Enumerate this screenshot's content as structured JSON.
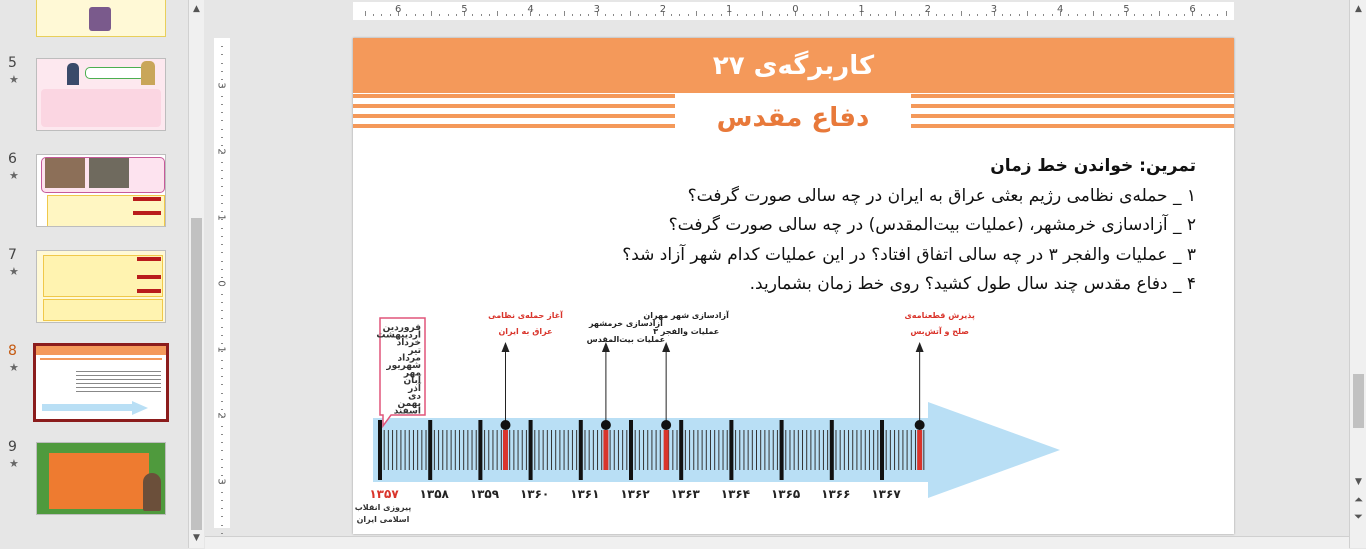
{
  "thumbnails": [
    {
      "number": "",
      "star": ""
    },
    {
      "number": "5",
      "star": "★"
    },
    {
      "number": "6",
      "star": "★"
    },
    {
      "number": "7",
      "star": "★"
    },
    {
      "number": "8",
      "star": "★"
    },
    {
      "number": "9",
      "star": "★"
    }
  ],
  "ruler": {
    "h_labels": [
      "6",
      "5",
      "4",
      "3",
      "2",
      "1",
      "0",
      "1",
      "2",
      "3",
      "4",
      "5",
      "6"
    ],
    "v_labels": [
      "3",
      "2",
      "1",
      "0",
      "1",
      "2",
      "3"
    ]
  },
  "slide": {
    "title": "کاربرگه‌ی ۲۷",
    "subtitle": "دفاع مقدس",
    "exercise_title": "تمرین: خواندن خط زمان",
    "questions": [
      "۱ _ حمله‌ی نظامی رژیم بعثی عراق به ایران در چه سالی صورت گرفت؟",
      "۲ _ آزادسازی خرمشهر، (عملیات بیت‌المقدس) در چه سالی صورت گرفت؟",
      "۳ _ عملیات والفجر ۳ در چه سالی اتفاق افتاد؟ در این عملیات کدام شهر آزاد شد؟",
      "۴ _ دفاع مقدس چند سال طول کشید؟ روی خط زمان بشمارید."
    ],
    "months": [
      "فروردین",
      "اردیبهشت",
      "خرداد",
      "تیر",
      "مرداد",
      "شهریور",
      "مهر",
      "آبان",
      "آذر",
      "دی",
      "بهمن",
      "اسفند"
    ],
    "years": [
      "۱۳۵۷",
      "۱۳۵۸",
      "۱۳۵۹",
      "۱۳۶۰",
      "۱۳۶۱",
      "۱۳۶۲",
      "۱۳۶۳",
      "۱۳۶۴",
      "۱۳۶۵",
      "۱۳۶۶",
      "۱۳۶۷"
    ],
    "year_caption": [
      "پیروزی انقلاب",
      "اسلامی ایران"
    ],
    "events": [
      {
        "lines": [
          "آغاز حمله‌ی نظامی",
          "عراق به ایران"
        ],
        "color": "#d9342b"
      },
      {
        "lines": [
          "آزادسازی خرمشهر",
          "عملیات بیت‌المقدس"
        ],
        "color": "#222222"
      },
      {
        "lines": [
          "آزادسازی شهر مهران",
          "عملیات والفجر ۳"
        ],
        "color": "#222222"
      },
      {
        "lines": [
          "پذیرش قطعنامه‌ی",
          "صلح و آتش‌بس"
        ],
        "color": "#d9342b"
      }
    ]
  },
  "colors": {
    "accent": "#f4995a",
    "title_orange": "#e8793a",
    "arrow": "#b9dff5",
    "red": "#d9342b",
    "pink": "#e0557a"
  }
}
